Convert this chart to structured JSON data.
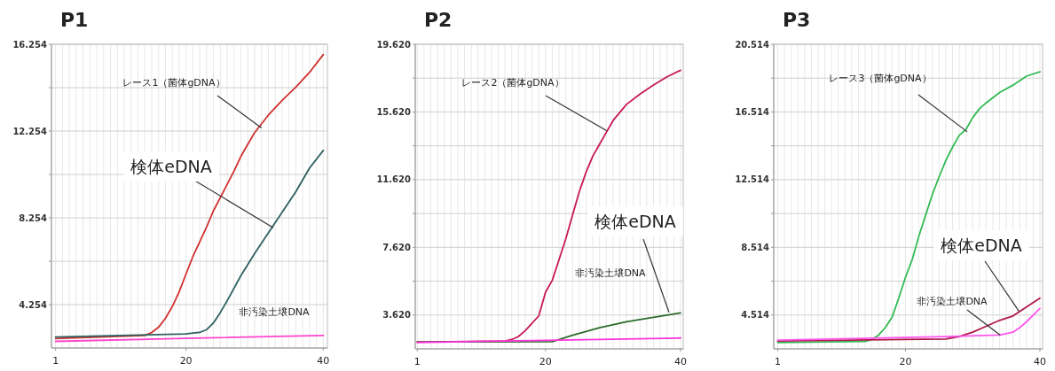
{
  "chart_data": [
    {
      "type": "line",
      "title": "P1",
      "xlim": [
        0.4,
        40.6
      ],
      "ylim": [
        2.254,
        16.254
      ],
      "xticks": [
        1,
        {
          "value": 2,
          "label": null
        },
        {
          "value": 3,
          "label": null
        },
        {
          "value": 4,
          "label": null
        },
        {
          "value": 5,
          "label": null
        },
        {
          "value": 6,
          "label": null
        },
        {
          "value": 7,
          "label": null
        },
        {
          "value": 8,
          "label": null
        },
        {
          "value": 9,
          "label": null
        },
        {
          "value": 10,
          "label": null
        },
        {
          "value": 11,
          "label": null
        },
        {
          "value": 12,
          "label": null
        },
        {
          "value": 13,
          "label": null
        },
        {
          "value": 14,
          "label": null
        },
        {
          "value": 15,
          "label": null
        },
        {
          "value": 16,
          "label": null
        },
        {
          "value": 17,
          "label": null
        },
        {
          "value": 18,
          "label": null
        },
        {
          "value": 19,
          "label": null
        },
        20,
        {
          "value": 21,
          "label": null
        },
        {
          "value": 22,
          "label": null
        },
        {
          "value": 23,
          "label": null
        },
        {
          "value": 24,
          "label": null
        },
        {
          "value": 25,
          "label": null
        },
        {
          "value": 26,
          "label": null
        },
        {
          "value": 27,
          "label": null
        },
        {
          "value": 28,
          "label": null
        },
        {
          "value": 29,
          "label": null
        },
        {
          "value": 30,
          "label": null
        },
        {
          "value": 31,
          "label": null
        },
        {
          "value": 32,
          "label": null
        },
        {
          "value": 33,
          "label": null
        },
        {
          "value": 34,
          "label": null
        },
        {
          "value": 35,
          "label": null
        },
        {
          "value": 36,
          "label": null
        },
        {
          "value": 37,
          "label": null
        },
        {
          "value": 38,
          "label": null
        },
        {
          "value": 39,
          "label": null
        },
        40
      ],
      "yticks": [
        4.254,
        {
          "value": 6.254,
          "label": null
        },
        8.254,
        {
          "value": 10.254,
          "label": null
        },
        12.254,
        {
          "value": 14.254,
          "label": null
        },
        16.254
      ],
      "grid": true,
      "series": [
        {
          "color": "#d03030",
          "x": [
            1,
            14,
            15,
            16,
            17,
            18,
            19,
            20,
            21,
            22,
            23,
            24,
            25,
            26,
            27,
            28,
            29,
            30,
            32,
            34,
            36,
            38,
            40
          ],
          "values": [
            2.69,
            2.83,
            2.97,
            3.21,
            3.62,
            4.16,
            4.84,
            5.66,
            6.47,
            7.15,
            7.83,
            8.58,
            9.19,
            9.8,
            10.41,
            11.09,
            11.64,
            12.18,
            12.99,
            13.67,
            14.28,
            14.96,
            15.78
          ]
        },
        {
          "color": "#2e6060",
          "x": [
            1,
            20,
            21,
            22,
            23,
            24,
            25,
            26,
            28,
            30,
            32,
            34,
            36,
            38,
            40
          ],
          "values": [
            2.76,
            2.9,
            2.94,
            2.97,
            3.1,
            3.41,
            3.89,
            4.43,
            5.59,
            6.61,
            7.56,
            8.51,
            9.46,
            10.55,
            11.36
          ]
        },
        {
          "color": "#ff44cc",
          "x": [
            1,
            20,
            40
          ],
          "values": [
            2.56,
            2.7,
            2.83
          ]
        }
      ],
      "annotations": [
        {
          "text": "レース1（菌体gDNA）",
          "x": 31,
          "y": 12.4
        },
        {
          "text": "検体eDNA",
          "x": 32.7,
          "y": 7.8
        },
        "非汚染土壌DNA"
      ]
    },
    {
      "type": "line",
      "title": "P2",
      "xlim": [
        0.7,
        40.4
      ],
      "ylim": [
        1.62,
        19.62
      ],
      "xticks": [
        1,
        {
          "value": 2,
          "label": null
        },
        {
          "value": 3,
          "label": null
        },
        {
          "value": 4,
          "label": null
        },
        {
          "value": 5,
          "label": null
        },
        {
          "value": 6,
          "label": null
        },
        {
          "value": 7,
          "label": null
        },
        {
          "value": 8,
          "label": null
        },
        {
          "value": 9,
          "label": null
        },
        {
          "value": 10,
          "label": null
        },
        {
          "value": 11,
          "label": null
        },
        {
          "value": 12,
          "label": null
        },
        {
          "value": 13,
          "label": null
        },
        {
          "value": 14,
          "label": null
        },
        {
          "value": 15,
          "label": null
        },
        {
          "value": 16,
          "label": null
        },
        {
          "value": 17,
          "label": null
        },
        {
          "value": 18,
          "label": null
        },
        {
          "value": 19,
          "label": null
        },
        20,
        {
          "value": 21,
          "label": null
        },
        {
          "value": 22,
          "label": null
        },
        {
          "value": 23,
          "label": null
        },
        {
          "value": 24,
          "label": null
        },
        {
          "value": 25,
          "label": null
        },
        {
          "value": 26,
          "label": null
        },
        {
          "value": 27,
          "label": null
        },
        {
          "value": 28,
          "label": null
        },
        {
          "value": 29,
          "label": null
        },
        {
          "value": 30,
          "label": null
        },
        {
          "value": 31,
          "label": null
        },
        {
          "value": 32,
          "label": null
        },
        {
          "value": 33,
          "label": null
        },
        {
          "value": 34,
          "label": null
        },
        {
          "value": 35,
          "label": null
        },
        {
          "value": 36,
          "label": null
        },
        {
          "value": 37,
          "label": null
        },
        {
          "value": 38,
          "label": null
        },
        {
          "value": 39,
          "label": null
        },
        40
      ],
      "yticks": [
        {
          "value": 3.62,
          "label": "3.620"
        },
        {
          "value": 5.62,
          "label": null
        },
        {
          "value": 7.62,
          "label": "7.620"
        },
        {
          "value": 9.62,
          "label": null
        },
        {
          "value": 11.62,
          "label": "11.620"
        },
        {
          "value": 13.62,
          "label": null
        },
        {
          "value": 15.62,
          "label": "15.620"
        },
        {
          "value": 17.62,
          "label": null
        },
        {
          "value": 19.62,
          "label": "19.620"
        }
      ],
      "grid": true,
      "series": [
        {
          "color": "#c8185a",
          "x": [
            1,
            14,
            15,
            16,
            17,
            18,
            19,
            20,
            21,
            22,
            23,
            24,
            25,
            26,
            27,
            28,
            29,
            30,
            32,
            34,
            36,
            38,
            40
          ],
          "values": [
            2.03,
            2.08,
            2.17,
            2.35,
            2.7,
            3.13,
            3.57,
            4.97,
            5.67,
            6.89,
            8.12,
            9.52,
            10.91,
            12.05,
            13.01,
            13.71,
            14.41,
            15.11,
            16.07,
            16.68,
            17.21,
            17.7,
            18.08
          ]
        },
        {
          "color": "#2a6a2a",
          "x": [
            1,
            21,
            24,
            28,
            32,
            36,
            40
          ],
          "values": [
            2.03,
            2.05,
            2.43,
            2.87,
            3.22,
            3.48,
            3.75
          ]
        },
        {
          "color": "#ff33dd",
          "x": [
            1,
            20,
            40
          ],
          "values": [
            2.0,
            2.12,
            2.26
          ]
        }
      ],
      "annotations": [
        {
          "text": "レース2（菌体gDNA）",
          "x": 29.1,
          "y": 14.5
        },
        {
          "text": "検体eDNA",
          "x": 38.3,
          "y": 3.78
        },
        "非汚染土壌DNA"
      ]
    },
    {
      "type": "line",
      "title": "P3",
      "xlim": [
        0.4,
        40.4
      ],
      "ylim": [
        2.514,
        20.514
      ],
      "xticks": [
        1,
        {
          "value": 2,
          "label": null
        },
        {
          "value": 3,
          "label": null
        },
        {
          "value": 4,
          "label": null
        },
        {
          "value": 5,
          "label": null
        },
        {
          "value": 6,
          "label": null
        },
        {
          "value": 7,
          "label": null
        },
        {
          "value": 8,
          "label": null
        },
        {
          "value": 9,
          "label": null
        },
        {
          "value": 10,
          "label": null
        },
        {
          "value": 11,
          "label": null
        },
        {
          "value": 12,
          "label": null
        },
        {
          "value": 13,
          "label": null
        },
        {
          "value": 14,
          "label": null
        },
        {
          "value": 15,
          "label": null
        },
        {
          "value": 16,
          "label": null
        },
        {
          "value": 17,
          "label": null
        },
        {
          "value": 18,
          "label": null
        },
        {
          "value": 19,
          "label": null
        },
        20,
        {
          "value": 21,
          "label": null
        },
        {
          "value": 22,
          "label": null
        },
        {
          "value": 23,
          "label": null
        },
        {
          "value": 24,
          "label": null
        },
        {
          "value": 25,
          "label": null
        },
        {
          "value": 26,
          "label": null
        },
        {
          "value": 27,
          "label": null
        },
        {
          "value": 28,
          "label": null
        },
        {
          "value": 29,
          "label": null
        },
        {
          "value": 30,
          "label": null
        },
        {
          "value": 31,
          "label": null
        },
        {
          "value": 32,
          "label": null
        },
        {
          "value": 33,
          "label": null
        },
        {
          "value": 34,
          "label": null
        },
        {
          "value": 35,
          "label": null
        },
        {
          "value": 36,
          "label": null
        },
        {
          "value": 37,
          "label": null
        },
        {
          "value": 38,
          "label": null
        },
        {
          "value": 39,
          "label": null
        },
        40
      ],
      "yticks": [
        4.514,
        {
          "value": 6.514,
          "label": null
        },
        8.514,
        {
          "value": 10.514,
          "label": null
        },
        12.514,
        {
          "value": 14.514,
          "label": null
        },
        16.514,
        {
          "value": 18.514,
          "label": null
        },
        20.514
      ],
      "grid": true,
      "series": [
        {
          "color": "#33bb55",
          "x": [
            1,
            14,
            15,
            16,
            17,
            18,
            19,
            20,
            21,
            22,
            23,
            24,
            25,
            26,
            27,
            28,
            29,
            30,
            31,
            32,
            34,
            36,
            38,
            40
          ],
          "values": [
            2.89,
            2.95,
            3.07,
            3.33,
            3.77,
            4.38,
            5.51,
            6.74,
            7.79,
            9.19,
            10.41,
            11.64,
            12.68,
            13.64,
            14.43,
            15.13,
            15.48,
            16.18,
            16.7,
            17.05,
            17.66,
            18.1,
            18.63,
            18.89
          ]
        },
        {
          "color": "#b01848",
          "x": [
            1,
            26,
            28,
            30,
            32,
            34,
            36,
            38,
            40
          ],
          "values": [
            2.98,
            3.1,
            3.24,
            3.5,
            3.85,
            4.2,
            4.46,
            4.99,
            5.51
          ]
        },
        {
          "color": "#ff55ee",
          "x": [
            1,
            26,
            34,
            36,
            37,
            38,
            40
          ],
          "values": [
            3.03,
            3.24,
            3.33,
            3.5,
            3.77,
            4.11,
            4.9
          ]
        }
      ],
      "annotations": [
        {
          "text": "レース3（菌体gDNA）",
          "x": 29.2,
          "y": 15.34
        },
        {
          "text": "検体eDNA",
          "x": 36.9,
          "y": 4.73
        },
        {
          "text": "非汚染土壌DNA",
          "x": 34.1,
          "y": 3.33
        }
      ]
    }
  ]
}
